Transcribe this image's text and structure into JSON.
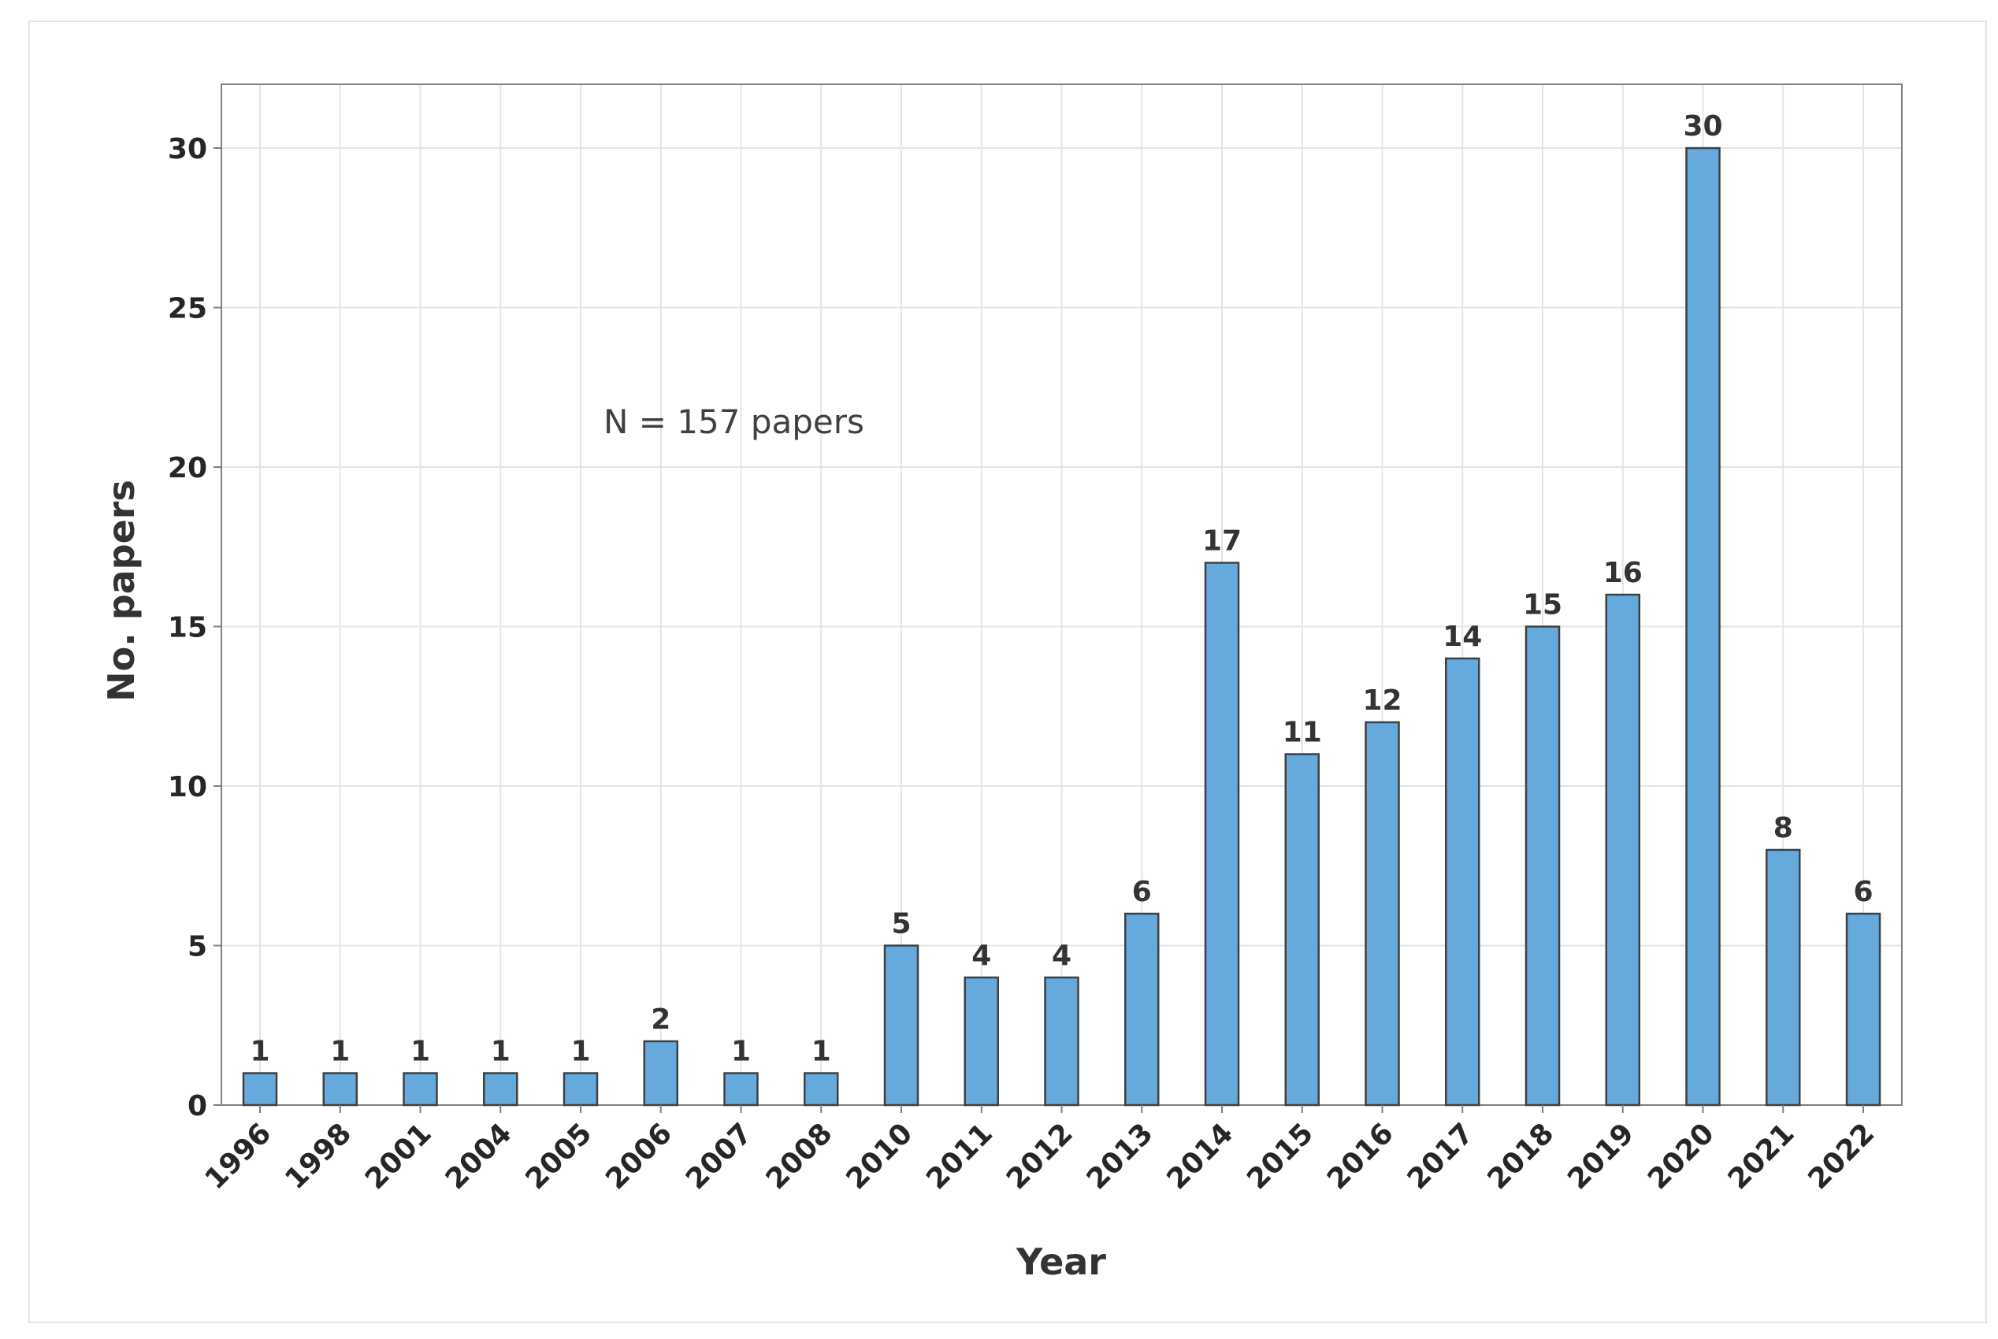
{
  "chart_data": {
    "type": "bar",
    "title": "",
    "xlabel": "Year",
    "ylabel": "No. papers",
    "annotation": "N = 157 papers",
    "categories": [
      "1996",
      "1998",
      "2001",
      "2004",
      "2005",
      "2006",
      "2007",
      "2008",
      "2010",
      "2011",
      "2012",
      "2013",
      "2014",
      "2015",
      "2016",
      "2017",
      "2018",
      "2019",
      "2020",
      "2021",
      "2022"
    ],
    "values": [
      1,
      1,
      1,
      1,
      1,
      2,
      1,
      1,
      5,
      4,
      4,
      6,
      17,
      11,
      12,
      14,
      15,
      16,
      30,
      8,
      6
    ],
    "ylim": [
      0,
      32
    ],
    "yticks": [
      0,
      5,
      10,
      15,
      20,
      25,
      30
    ],
    "grid": true,
    "legend": "none",
    "colors": {
      "bar_fill": "#66a9dd",
      "bar_stroke": "#404040",
      "grid": "#e4e4e4",
      "frame": "#808080"
    }
  }
}
